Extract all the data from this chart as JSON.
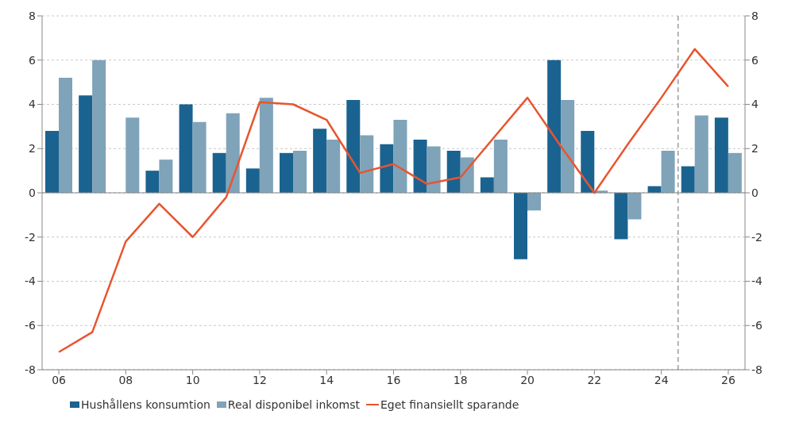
{
  "chart_data": {
    "type": "bar",
    "x": [
      2006,
      2007,
      2008,
      2009,
      2010,
      2011,
      2012,
      2013,
      2014,
      2015,
      2016,
      2017,
      2018,
      2019,
      2020,
      2021,
      2022,
      2023,
      2024,
      2025,
      2026
    ],
    "series": [
      {
        "name": "Hushållens konsumtion",
        "color": "#1a6390",
        "values": [
          2.8,
          4.4,
          0.0,
          1.0,
          4.0,
          1.8,
          1.1,
          1.8,
          2.9,
          4.2,
          2.2,
          2.4,
          1.9,
          0.7,
          -3.0,
          6.0,
          2.8,
          -2.1,
          0.3,
          1.2,
          3.4
        ]
      },
      {
        "name": "Real disponibel inkomst",
        "color": "#7fa3b9",
        "values": [
          5.2,
          6.0,
          3.4,
          1.5,
          3.2,
          3.6,
          4.3,
          1.9,
          2.4,
          2.6,
          3.3,
          2.1,
          1.6,
          2.4,
          -0.8,
          4.2,
          0.1,
          -1.2,
          1.9,
          3.5,
          1.8
        ]
      },
      {
        "name": "Eget finansiellt sparande",
        "type": "line",
        "color": "#e8552f",
        "values": [
          -7.2,
          -6.3,
          -2.2,
          -0.5,
          -2.0,
          -0.2,
          4.1,
          4.0,
          3.3,
          0.9,
          1.3,
          0.4,
          0.7,
          2.5,
          4.3,
          2.1,
          0.0,
          2.2,
          4.3,
          6.5,
          4.8
        ]
      }
    ],
    "xlim": [
      2005.5,
      2026.5
    ],
    "xticks": [
      {
        "value": 2006,
        "label": "06"
      },
      {
        "value": 2008,
        "label": "08"
      },
      {
        "value": 2010,
        "label": "10"
      },
      {
        "value": 2012,
        "label": "12"
      },
      {
        "value": 2014,
        "label": "14"
      },
      {
        "value": 2016,
        "label": "16"
      },
      {
        "value": 2018,
        "label": "18"
      },
      {
        "value": 2020,
        "label": "20"
      },
      {
        "value": 2022,
        "label": "22"
      },
      {
        "value": 2024,
        "label": "24"
      },
      {
        "value": 2026,
        "label": "26"
      }
    ],
    "ylim": [
      -8,
      8
    ],
    "yticks": [
      -8,
      -6,
      -4,
      -2,
      0,
      2,
      4,
      6,
      8
    ],
    "y2lim": [
      -8,
      8
    ],
    "y2ticks": [
      -8,
      -6,
      -4,
      -2,
      0,
      2,
      4,
      6,
      8
    ],
    "ref_lines": [
      {
        "axis": "x",
        "value": 2024.5,
        "color": "#9a9a9a",
        "line_style": "dashed"
      }
    ],
    "grid": "y",
    "legend": "bottom",
    "marker": "none",
    "line_style": "solid"
  }
}
